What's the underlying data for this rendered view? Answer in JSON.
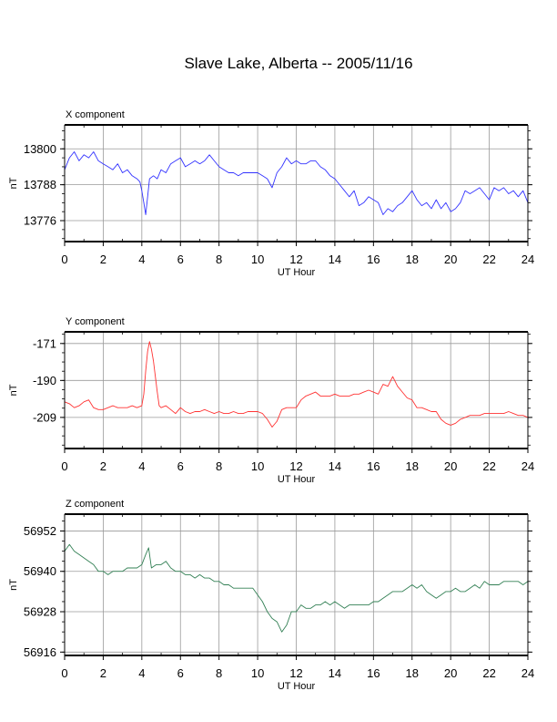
{
  "page": {
    "title": "Slave Lake, Alberta -- 2005/11/16"
  },
  "chart_data": [
    {
      "type": "line",
      "panel_label": "X component",
      "xlabel": "UT Hour",
      "ylabel": "nT",
      "xlim": [
        0,
        24
      ],
      "ylim": [
        13769,
        13808
      ],
      "grid": true,
      "xticks": [
        0,
        2,
        4,
        6,
        8,
        10,
        12,
        14,
        16,
        18,
        20,
        22,
        24
      ],
      "yticks": [
        13776,
        13788,
        13800
      ],
      "series": [
        {
          "color": "#3333ff",
          "x": [
            0,
            0.25,
            0.5,
            0.75,
            1,
            1.25,
            1.5,
            1.75,
            2,
            2.25,
            2.5,
            2.75,
            3,
            3.25,
            3.5,
            3.75,
            3.9,
            4.0,
            4.1,
            4.2,
            4.3,
            4.4,
            4.6,
            4.8,
            5,
            5.25,
            5.5,
            5.75,
            6,
            6.25,
            6.5,
            6.75,
            7,
            7.25,
            7.5,
            7.75,
            8,
            8.25,
            8.5,
            8.75,
            9,
            9.25,
            9.5,
            9.75,
            10,
            10.25,
            10.5,
            10.75,
            11,
            11.25,
            11.5,
            11.75,
            12,
            12.25,
            12.5,
            12.75,
            13,
            13.25,
            13.5,
            13.75,
            14,
            14.25,
            14.5,
            14.75,
            15,
            15.25,
            15.5,
            15.75,
            16,
            16.25,
            16.5,
            16.75,
            17,
            17.25,
            17.5,
            17.75,
            18,
            18.25,
            18.5,
            18.75,
            19,
            19.25,
            19.5,
            19.75,
            20,
            20.25,
            20.5,
            20.75,
            21,
            21.25,
            21.5,
            21.75,
            22,
            22.25,
            22.5,
            22.75,
            23,
            23.25,
            23.5,
            23.75,
            24
          ],
          "y": [
            13793,
            13797,
            13799,
            13796,
            13798,
            13797,
            13799,
            13796,
            13795,
            13794,
            13793,
            13795,
            13792,
            13793,
            13791,
            13790,
            13789,
            13786,
            13782,
            13778,
            13784,
            13790,
            13791,
            13790,
            13793,
            13792,
            13795,
            13796,
            13797,
            13794,
            13795,
            13796,
            13795,
            13796,
            13798,
            13796,
            13794,
            13793,
            13792,
            13792,
            13791,
            13792,
            13792,
            13792,
            13792,
            13791,
            13790,
            13787,
            13792,
            13794,
            13797,
            13795,
            13796,
            13795,
            13795,
            13796,
            13796,
            13794,
            13793,
            13791,
            13790,
            13788,
            13786,
            13784,
            13786,
            13781,
            13782,
            13784,
            13783,
            13782,
            13778,
            13780,
            13779,
            13781,
            13782,
            13784,
            13786,
            13783,
            13781,
            13782,
            13780,
            13783,
            13780,
            13782,
            13779,
            13780,
            13782,
            13786,
            13785,
            13786,
            13787,
            13785,
            13783,
            13787,
            13786,
            13787,
            13785,
            13786,
            13784,
            13786,
            13782
          ]
        }
      ]
    },
    {
      "type": "line",
      "panel_label": "Y component",
      "xlabel": "UT Hour",
      "ylabel": "nT",
      "xlim": [
        0,
        24
      ],
      "ylim": [
        -225,
        -165
      ],
      "grid": true,
      "xticks": [
        0,
        2,
        4,
        6,
        8,
        10,
        12,
        14,
        16,
        18,
        20,
        22,
        24
      ],
      "yticks": [
        -209,
        -190,
        -171
      ],
      "series": [
        {
          "color": "#ff3333",
          "x": [
            0,
            0.25,
            0.5,
            0.75,
            1,
            1.25,
            1.5,
            1.75,
            2,
            2.25,
            2.5,
            2.75,
            3,
            3.25,
            3.5,
            3.75,
            4.0,
            4.1,
            4.2,
            4.3,
            4.4,
            4.5,
            4.6,
            4.7,
            4.8,
            4.9,
            5.0,
            5.25,
            5.5,
            5.75,
            6,
            6.25,
            6.5,
            6.75,
            7,
            7.25,
            7.5,
            7.75,
            8,
            8.25,
            8.5,
            8.75,
            9,
            9.25,
            9.5,
            9.75,
            10,
            10.25,
            10.5,
            10.75,
            11,
            11.25,
            11.5,
            11.75,
            12,
            12.25,
            12.5,
            12.75,
            13,
            13.25,
            13.5,
            13.75,
            14,
            14.25,
            14.5,
            14.75,
            15,
            15.25,
            15.5,
            15.75,
            16,
            16.25,
            16.5,
            16.75,
            17,
            17.25,
            17.5,
            17.75,
            18,
            18.25,
            18.5,
            18.75,
            19,
            19.25,
            19.5,
            19.75,
            20,
            20.25,
            20.5,
            20.75,
            21,
            21.25,
            21.5,
            21.75,
            22,
            22.25,
            22.5,
            22.75,
            23,
            23.25,
            23.5,
            23.75,
            24
          ],
          "y": [
            -201,
            -202,
            -204,
            -203,
            -201,
            -200,
            -204,
            -205,
            -205,
            -204,
            -203,
            -204,
            -204,
            -204,
            -203,
            -204,
            -203,
            -197,
            -185,
            -175,
            -170,
            -174,
            -180,
            -188,
            -196,
            -203,
            -204,
            -203,
            -205,
            -207,
            -204,
            -206,
            -207,
            -206,
            -206,
            -205,
            -206,
            -207,
            -206,
            -207,
            -207,
            -206,
            -207,
            -207,
            -206,
            -206,
            -206,
            -207,
            -210,
            -214,
            -211,
            -205,
            -204,
            -204,
            -204,
            -200,
            -198,
            -197,
            -196,
            -198,
            -198,
            -198,
            -197,
            -198,
            -198,
            -198,
            -197,
            -197,
            -196,
            -195,
            -196,
            -197,
            -192,
            -193,
            -188,
            -193,
            -196,
            -199,
            -200,
            -204,
            -204,
            -205,
            -206,
            -206,
            -210,
            -212,
            -213,
            -212,
            -210,
            -209,
            -208,
            -208,
            -208,
            -207,
            -207,
            -207,
            -207,
            -207,
            -206,
            -207,
            -208,
            -208,
            -209
          ]
        }
      ]
    },
    {
      "type": "line",
      "panel_label": "Z component",
      "xlabel": "UT Hour",
      "ylabel": "nT",
      "xlim": [
        0,
        24
      ],
      "ylim": [
        56915,
        56957
      ],
      "grid": true,
      "xticks": [
        0,
        2,
        4,
        6,
        8,
        10,
        12,
        14,
        16,
        18,
        20,
        22,
        24
      ],
      "yticks": [
        56916,
        56928,
        56940,
        56952
      ],
      "series": [
        {
          "color": "#338055",
          "x": [
            0,
            0.25,
            0.5,
            0.75,
            1,
            1.25,
            1.5,
            1.75,
            2,
            2.25,
            2.5,
            2.75,
            3,
            3.25,
            3.5,
            3.75,
            4.0,
            4.2,
            4.35,
            4.5,
            4.75,
            5,
            5.25,
            5.5,
            5.75,
            6,
            6.25,
            6.5,
            6.75,
            7,
            7.25,
            7.5,
            7.75,
            8,
            8.25,
            8.5,
            8.75,
            9,
            9.25,
            9.5,
            9.75,
            10,
            10.25,
            10.5,
            10.75,
            11,
            11.25,
            11.5,
            11.75,
            12,
            12.25,
            12.5,
            12.75,
            13,
            13.25,
            13.5,
            13.75,
            14,
            14.25,
            14.5,
            14.75,
            15,
            15.25,
            15.5,
            15.75,
            16,
            16.25,
            16.5,
            16.75,
            17,
            17.25,
            17.5,
            17.75,
            18,
            18.25,
            18.5,
            18.75,
            19,
            19.25,
            19.5,
            19.75,
            20,
            20.25,
            20.5,
            20.75,
            21,
            21.25,
            21.5,
            21.75,
            22,
            22.25,
            22.5,
            22.75,
            23,
            23.25,
            23.5,
            23.75,
            24
          ],
          "y": [
            56946,
            56948,
            56946,
            56945,
            56944,
            56943,
            56942,
            56940,
            56940,
            56939,
            56940,
            56940,
            56940,
            56941,
            56941,
            56941,
            56942,
            56945,
            56947,
            56941,
            56942,
            56942,
            56943,
            56941,
            56940,
            56940,
            56939,
            56939,
            56938,
            56939,
            56938,
            56938,
            56937,
            56937,
            56936,
            56936,
            56935,
            56935,
            56935,
            56935,
            56935,
            56933,
            56931,
            56928,
            56926,
            56925,
            56922,
            56924,
            56928,
            56928,
            56930,
            56929,
            56929,
            56930,
            56930,
            56931,
            56930,
            56931,
            56930,
            56929,
            56930,
            56930,
            56930,
            56930,
            56930,
            56931,
            56931,
            56932,
            56933,
            56934,
            56934,
            56934,
            56935,
            56936,
            56935,
            56936,
            56934,
            56933,
            56932,
            56933,
            56934,
            56934,
            56935,
            56934,
            56934,
            56935,
            56936,
            56935,
            56937,
            56936,
            56936,
            56936,
            56937,
            56937,
            56937,
            56937,
            56936,
            56937
          ]
        }
      ]
    }
  ]
}
